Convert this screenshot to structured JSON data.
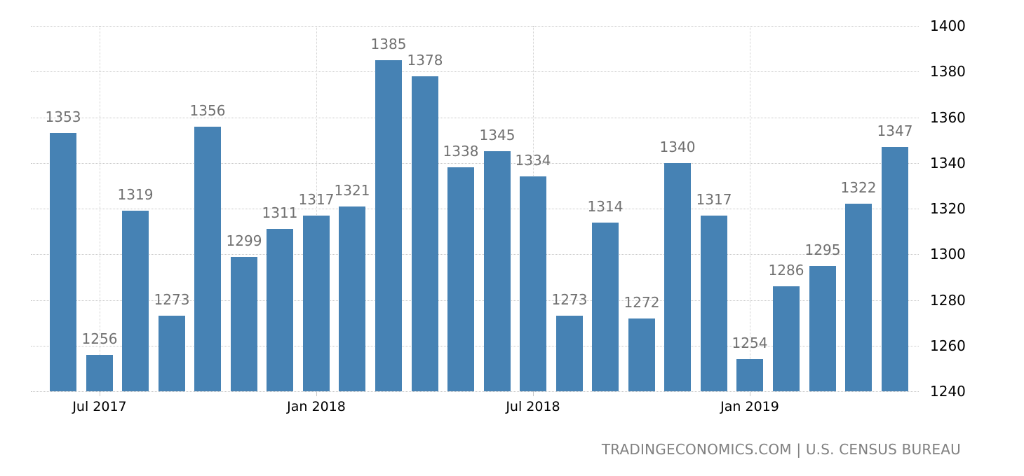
{
  "chart_data": {
    "type": "bar",
    "title": "",
    "xlabel": "",
    "ylabel": "",
    "ylim": [
      1240,
      1400
    ],
    "yticks": [
      1240,
      1260,
      1280,
      1300,
      1320,
      1340,
      1360,
      1380,
      1400
    ],
    "y_axis_position": "right",
    "grid": true,
    "legend": null,
    "bar_color": "#4682b4",
    "categories": [
      "Jun 2017",
      "Jul 2017",
      "Aug 2017",
      "Sep 2017",
      "Oct 2017",
      "Nov 2017",
      "Dec 2017",
      "Jan 2018",
      "Feb 2018",
      "Mar 2018",
      "Apr 2018",
      "May 2018",
      "Jun 2018",
      "Jul 2018",
      "Aug 2018",
      "Sep 2018",
      "Oct 2018",
      "Nov 2018",
      "Dec 2018",
      "Jan 2019",
      "Feb 2019",
      "Mar 2019",
      "Apr 2019",
      "May 2019"
    ],
    "values": [
      1353,
      1256,
      1319,
      1273,
      1356,
      1299,
      1311,
      1317,
      1321,
      1385,
      1378,
      1338,
      1345,
      1334,
      1273,
      1314,
      1272,
      1340,
      1317,
      1254,
      1286,
      1295,
      1322,
      1347
    ],
    "x_tick_labels": [
      {
        "label": "Jul 2017",
        "index": 1
      },
      {
        "label": "Jan 2018",
        "index": 7
      },
      {
        "label": "Jul 2018",
        "index": 13
      },
      {
        "label": "Jan 2019",
        "index": 19
      }
    ],
    "source": "TRADINGECONOMICS.COM | U.S. CENSUS BUREAU"
  },
  "footer": {
    "source_label": "TRADINGECONOMICS.COM | U.S. CENSUS BUREAU"
  }
}
